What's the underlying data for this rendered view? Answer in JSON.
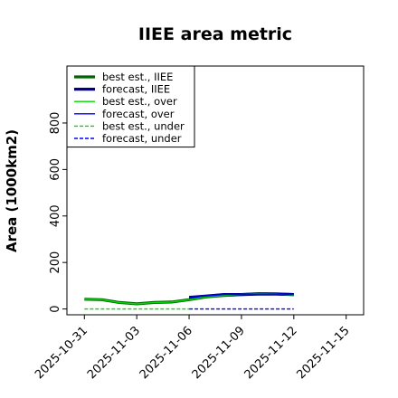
{
  "chart_data": {
    "type": "line",
    "title": "IIEE area metric",
    "xlabel": "",
    "ylabel": "Area (1000km2)",
    "x_ticks": [
      "2025-10-31",
      "2025-11-03",
      "2025-11-06",
      "2025-11-09",
      "2025-11-12",
      "2025-11-15"
    ],
    "highlighted_x_tick": "2025-11-06",
    "highlight_color": "#228b22",
    "y_ticks": [
      0,
      200,
      400,
      600,
      800
    ],
    "ylim": [
      -25,
      1045
    ],
    "xlim": [
      "2025-10-30",
      "2025-11-16"
    ],
    "grid": false,
    "legend_position": "top-left",
    "series": [
      {
        "name": "best est., IIEE",
        "color": "#006400",
        "style": "solid",
        "width": "thick",
        "x": [
          "2025-10-31",
          "2025-11-01",
          "2025-11-02",
          "2025-11-03",
          "2025-11-04",
          "2025-11-05",
          "2025-11-06",
          "2025-11-07",
          "2025-11-08",
          "2025-11-09",
          "2025-11-10",
          "2025-11-11",
          "2025-11-12"
        ],
        "values": [
          42,
          40,
          28,
          22,
          28,
          30,
          40,
          52,
          58,
          62,
          66,
          65,
          62
        ]
      },
      {
        "name": "forecast, IIEE",
        "color": "#00008b",
        "style": "solid",
        "width": "thick",
        "x": [
          "2025-11-06",
          "2025-11-07",
          "2025-11-08",
          "2025-11-09",
          "2025-11-10",
          "2025-11-11",
          "2025-11-12"
        ],
        "values": [
          50,
          56,
          62,
          62,
          64,
          64,
          62
        ]
      },
      {
        "name": "best est., over",
        "color": "#00dd00",
        "style": "solid",
        "width": "thin",
        "x": [
          "2025-10-31",
          "2025-11-01",
          "2025-11-02",
          "2025-11-03",
          "2025-11-04",
          "2025-11-05",
          "2025-11-06",
          "2025-11-07",
          "2025-11-08",
          "2025-11-09",
          "2025-11-10",
          "2025-11-11",
          "2025-11-12"
        ],
        "values": [
          42,
          40,
          28,
          22,
          28,
          30,
          40,
          52,
          58,
          62,
          66,
          65,
          60
        ]
      },
      {
        "name": "forecast, over",
        "color": "#0000ff",
        "style": "solid",
        "width": "thin",
        "x": [
          "2025-11-06",
          "2025-11-07",
          "2025-11-08",
          "2025-11-09",
          "2025-11-10",
          "2025-11-11",
          "2025-11-12"
        ],
        "values": [
          50,
          56,
          62,
          62,
          64,
          64,
          62
        ]
      },
      {
        "name": "best est., under",
        "color": "#00dd00",
        "style": "dashed",
        "width": "thin",
        "x": [
          "2025-10-31",
          "2025-11-06"
        ],
        "values": [
          0,
          0
        ]
      },
      {
        "name": "forecast, under",
        "color": "#0000ff",
        "style": "dashed",
        "width": "thin",
        "x": [
          "2025-11-06",
          "2025-11-09",
          "2025-11-12"
        ],
        "values": [
          0,
          0,
          0
        ]
      }
    ]
  }
}
